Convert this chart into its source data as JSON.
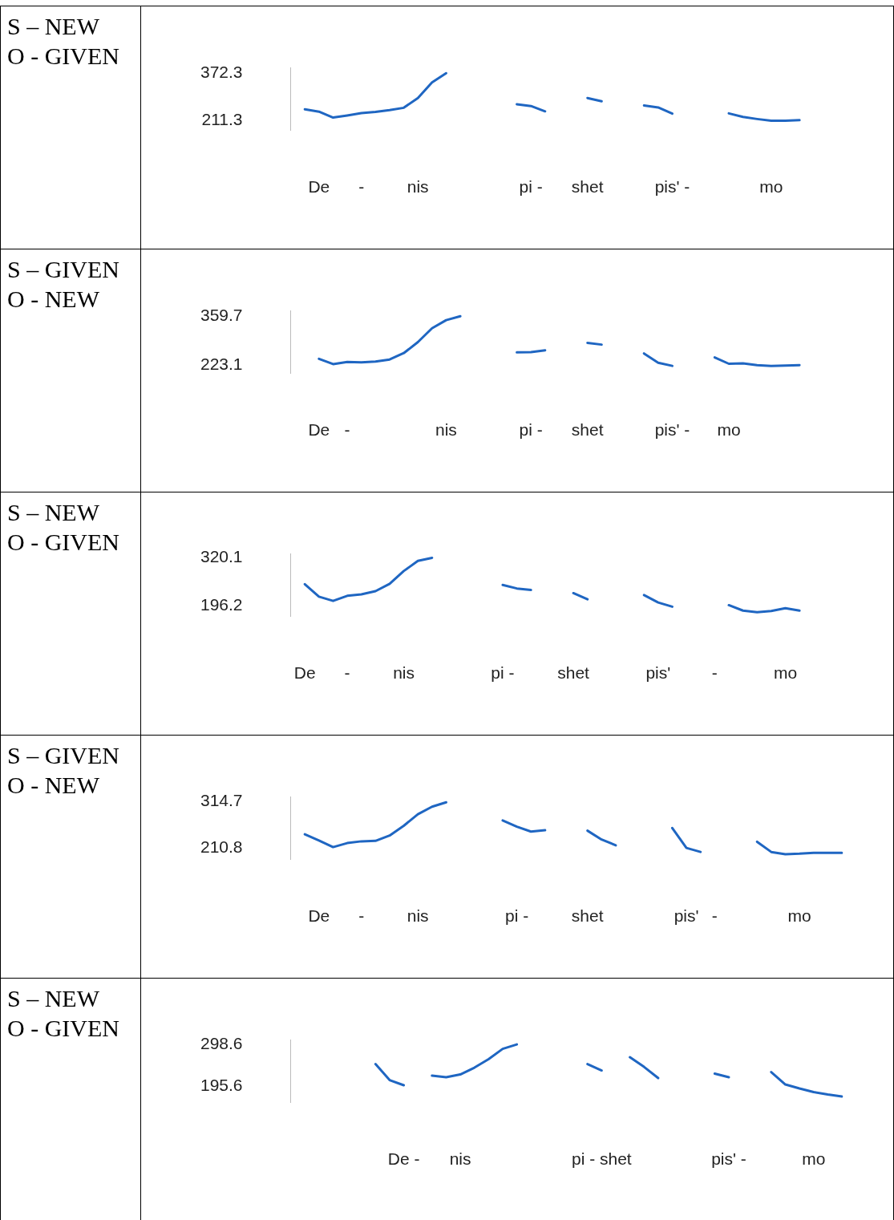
{
  "chart_data": [
    {
      "type": "line",
      "title": "S – NEW",
      "subtitle": "O - GIVEN",
      "ylim": [
        180,
        390
      ],
      "categories": [
        null,
        null,
        "De",
        null,
        null,
        "-",
        null,
        null,
        null,
        "nis",
        null,
        null,
        null,
        null,
        null,
        null,
        null,
        "pi -",
        null,
        null,
        null,
        "shet",
        null,
        null,
        null,
        null,
        null,
        "pis' -",
        null,
        null,
        null,
        null,
        null,
        null,
        "mo",
        null,
        null,
        null,
        null,
        null
      ],
      "yticks": [
        211.3,
        372.3
      ],
      "series": [
        {
          "color": "#1f66c2",
          "values": [
            null,
            250,
            242,
            222,
            229,
            237,
            241,
            247,
            255,
            288,
            341,
            372,
            null,
            null,
            null,
            null,
            267,
            261,
            243,
            null,
            null,
            288,
            277,
            null,
            null,
            263,
            256,
            235,
            null,
            null,
            null,
            236,
            224,
            217,
            211,
            211,
            213,
            null,
            null,
            null
          ]
        }
      ]
    },
    {
      "type": "line",
      "title": "S – GIVEN",
      "subtitle": "O - NEW",
      "ylim": [
        200,
        375
      ],
      "categories": [
        null,
        null,
        "De",
        null,
        "-",
        null,
        null,
        null,
        null,
        null,
        null,
        "nis",
        null,
        null,
        null,
        null,
        null,
        "pi -",
        null,
        null,
        null,
        "shet",
        null,
        null,
        null,
        null,
        null,
        "pis' -",
        null,
        null,
        null,
        "mo",
        null,
        null,
        null,
        null,
        null,
        null,
        null,
        null
      ],
      "yticks": [
        223.1,
        359.7
      ],
      "series": [
        {
          "color": "#1f66c2",
          "values": [
            null,
            null,
            240,
            225,
            231,
            230,
            232,
            238,
            256,
            287,
            326,
            349,
            360,
            null,
            null,
            null,
            258,
            259,
            264,
            null,
            null,
            285,
            280,
            null,
            null,
            255,
            229,
            220,
            null,
            null,
            244,
            226,
            227,
            222,
            220,
            221,
            222,
            null,
            null,
            null
          ]
        }
      ]
    },
    {
      "type": "line",
      "title": "S – NEW",
      "subtitle": "O - GIVEN",
      "ylim": [
        170,
        330
      ],
      "categories": [
        null,
        "De",
        null,
        null,
        "-",
        null,
        null,
        null,
        "nis",
        null,
        null,
        null,
        null,
        null,
        null,
        "pi -",
        null,
        null,
        null,
        null,
        "shet",
        null,
        null,
        null,
        null,
        null,
        "pis'",
        null,
        null,
        null,
        "-",
        null,
        null,
        null,
        null,
        "mo",
        null,
        null,
        null,
        null
      ],
      "yticks": [
        196.2,
        320.1
      ],
      "series": [
        {
          "color": "#1f66c2",
          "values": [
            null,
            252,
            220,
            209,
            222,
            226,
            234,
            253,
            286,
            312,
            320,
            null,
            null,
            null,
            null,
            250,
            241,
            237,
            null,
            null,
            229,
            213,
            null,
            null,
            null,
            224,
            205,
            194,
            null,
            null,
            null,
            198,
            184,
            180,
            183,
            190,
            184,
            null,
            null,
            null
          ]
        }
      ]
    },
    {
      "type": "line",
      "title": "S – GIVEN",
      "subtitle": "O - NEW",
      "ylim": [
        185,
        325
      ],
      "categories": [
        null,
        null,
        "De",
        null,
        null,
        "-",
        null,
        null,
        null,
        "nis",
        null,
        null,
        null,
        null,
        null,
        null,
        "pi -",
        null,
        null,
        null,
        null,
        "shet",
        null,
        null,
        null,
        null,
        null,
        null,
        "pis'",
        null,
        "-",
        null,
        null,
        null,
        null,
        null,
        "mo",
        null,
        null,
        null
      ],
      "yticks": [
        210.8,
        314.7
      ],
      "series": [
        {
          "color": "#1f66c2",
          "values": [
            null,
            241,
            227,
            212,
            221,
            225,
            226,
            238,
            260,
            286,
            303,
            313,
            null,
            null,
            null,
            272,
            258,
            247,
            250,
            null,
            null,
            249,
            229,
            216,
            null,
            null,
            null,
            255,
            210,
            201,
            null,
            null,
            null,
            224,
            201,
            196,
            197,
            199,
            199,
            199
          ]
        }
      ]
    },
    {
      "type": "line",
      "title": "S – NEW",
      "subtitle": "O - GIVEN",
      "ylim": [
        155,
        310
      ],
      "categories": [
        null,
        null,
        null,
        null,
        null,
        null,
        null,
        null,
        "De -",
        null,
        null,
        null,
        "nis",
        null,
        null,
        null,
        null,
        null,
        null,
        null,
        null,
        null,
        "pi - shet",
        null,
        null,
        null,
        null,
        null,
        null,
        null,
        null,
        "pis' -",
        null,
        null,
        null,
        null,
        null,
        "mo",
        null,
        null
      ],
      "yticks": [
        195.6,
        298.6
      ],
      "series": [
        {
          "color": "#1f66c2",
          "values": [
            null,
            null,
            null,
            null,
            null,
            null,
            250,
            210,
            197,
            null,
            221,
            217,
            224,
            241,
            262,
            288,
            299,
            null,
            null,
            null,
            null,
            250,
            234,
            null,
            267,
            243,
            215,
            null,
            null,
            null,
            226,
            217,
            null,
            null,
            230,
            199,
            189,
            180,
            174,
            169
          ]
        }
      ]
    }
  ]
}
